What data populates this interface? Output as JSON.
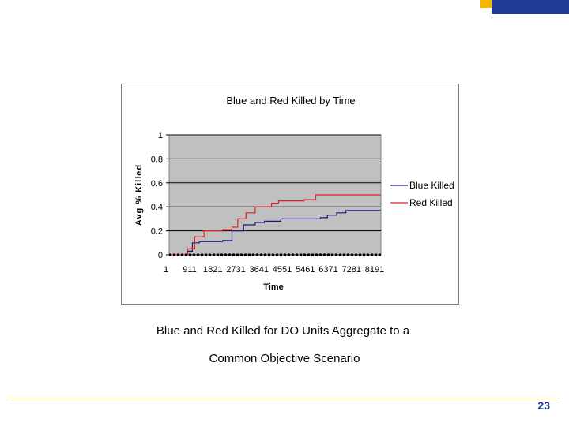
{
  "slide": {
    "caption_line1": "Blue and Red Killed for DO Units Aggregate to a",
    "caption_line2": "Common Objective Scenario",
    "page_number": "23",
    "accent_blue": "#1f3a93",
    "accent_orange": "#f5b400"
  },
  "chart_data": {
    "type": "line",
    "title": "Blue and Red Killed by Time",
    "xlabel": "Time",
    "ylabel": "Avg % Killed",
    "x_tick_labels": [
      "1",
      "911",
      "1821",
      "2731",
      "3641",
      "4551",
      "5461",
      "6371",
      "7281",
      "8191"
    ],
    "y_tick_labels": [
      "1",
      "0.8",
      "0.6",
      "0.4",
      "0.2",
      "0"
    ],
    "xlim": [
      1,
      9100
    ],
    "ylim": [
      0,
      1
    ],
    "grid": true,
    "legend_position": "right",
    "series": [
      {
        "name": "Blue Killed",
        "color": "#1a1a80",
        "points": [
          [
            1,
            0
          ],
          [
            500,
            0
          ],
          [
            800,
            0.03
          ],
          [
            1000,
            0.1
          ],
          [
            1300,
            0.11
          ],
          [
            2300,
            0.12
          ],
          [
            2700,
            0.2
          ],
          [
            3200,
            0.25
          ],
          [
            3700,
            0.27
          ],
          [
            4100,
            0.28
          ],
          [
            4800,
            0.3
          ],
          [
            6500,
            0.31
          ],
          [
            6800,
            0.33
          ],
          [
            7200,
            0.35
          ],
          [
            7600,
            0.37
          ],
          [
            9100,
            0.37
          ]
        ]
      },
      {
        "name": "Red Killed",
        "color": "#e02020",
        "points": [
          [
            1,
            0
          ],
          [
            500,
            0
          ],
          [
            800,
            0.05
          ],
          [
            1100,
            0.15
          ],
          [
            1500,
            0.2
          ],
          [
            2300,
            0.21
          ],
          [
            2700,
            0.23
          ],
          [
            2950,
            0.3
          ],
          [
            3300,
            0.35
          ],
          [
            3700,
            0.4
          ],
          [
            4400,
            0.43
          ],
          [
            4700,
            0.45
          ],
          [
            5800,
            0.46
          ],
          [
            6300,
            0.5
          ],
          [
            9100,
            0.5
          ]
        ]
      },
      {
        "name": "",
        "color": "#000000",
        "points": [
          [
            1,
            0
          ],
          [
            9100,
            0
          ]
        ]
      }
    ]
  }
}
